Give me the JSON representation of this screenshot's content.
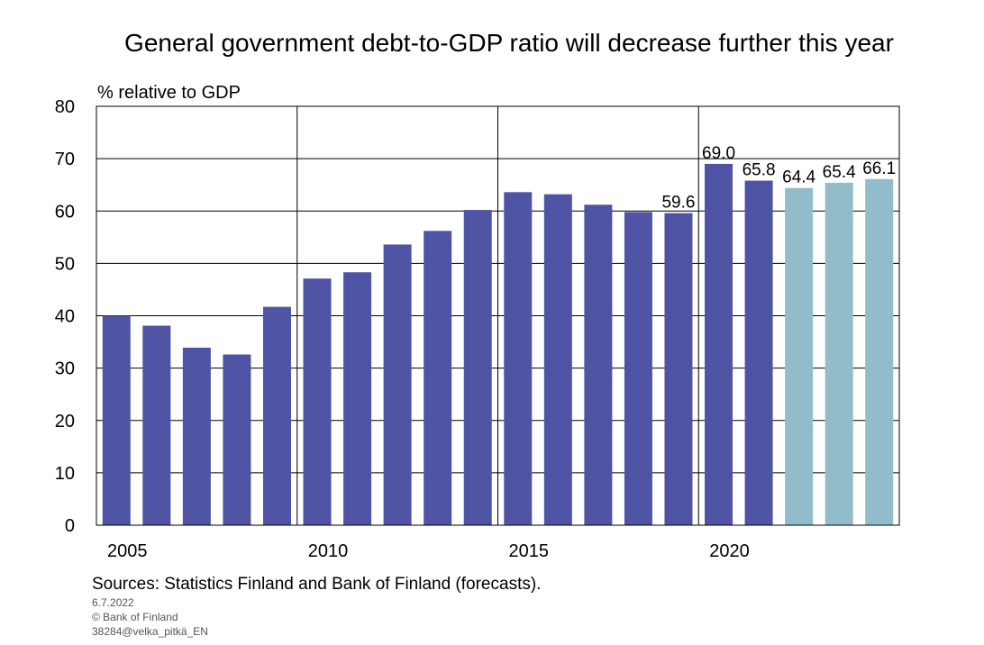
{
  "chart_data": {
    "type": "bar",
    "title": "General government debt-to-GDP ratio will decrease further this year",
    "ylabel": "% relative to GDP",
    "xlabel": "",
    "ylim": [
      0,
      80
    ],
    "yticks": [
      0,
      10,
      20,
      30,
      40,
      50,
      60,
      70,
      80
    ],
    "xtick_labels": [
      "2005",
      "2010",
      "2015",
      "2020"
    ],
    "grid": true,
    "categories": [
      "2005",
      "2006",
      "2007",
      "2008",
      "2009",
      "2010",
      "2011",
      "2012",
      "2013",
      "2014",
      "2015",
      "2016",
      "2017",
      "2018",
      "2019",
      "2020",
      "2021",
      "2022",
      "2023",
      "2024"
    ],
    "values": [
      40.0,
      38.1,
      33.9,
      32.6,
      41.7,
      47.1,
      48.3,
      53.6,
      56.2,
      60.2,
      63.6,
      63.2,
      61.2,
      59.8,
      59.6,
      69.0,
      65.8,
      64.4,
      65.4,
      66.1
    ],
    "forecast": [
      false,
      false,
      false,
      false,
      false,
      false,
      false,
      false,
      false,
      false,
      false,
      false,
      false,
      false,
      false,
      false,
      false,
      true,
      true,
      true
    ],
    "data_labels": {
      "2019": "59.6",
      "2020": "69.0",
      "2021": "65.8",
      "2022": "64.4",
      "2023": "65.4",
      "2024": "66.1"
    },
    "colors": {
      "actual": "#4f53a3",
      "forecast": "#93bcca"
    }
  },
  "footer": {
    "sources": "Sources: Statistics Finland and Bank of Finland (forecasts).",
    "date": "6.7.2022",
    "copyright": "© Bank of Finland",
    "code": "38284@velka_pitkä_EN"
  }
}
